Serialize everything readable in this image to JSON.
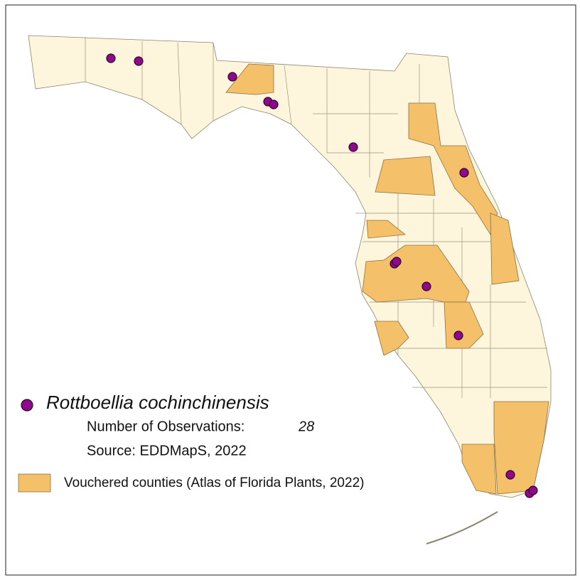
{
  "legend": {
    "species": "Rottboellia cochinchinensis",
    "observations_label": "Number of Observations:",
    "observations_count": "28",
    "source": "Source: EDDMapS, 2022",
    "vouchered": "Vouchered counties (Atlas of Florida Plants, 2022)"
  }
}
